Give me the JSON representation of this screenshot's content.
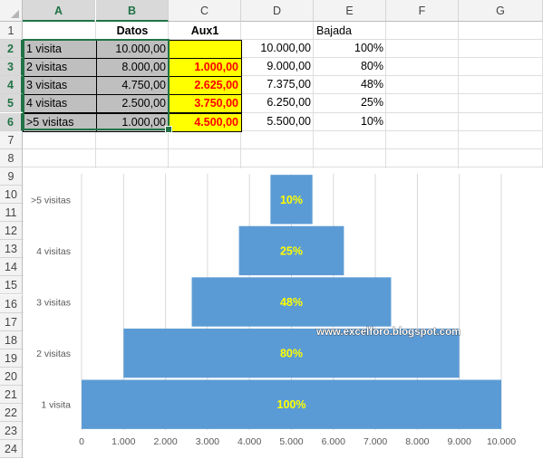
{
  "columns": [
    "A",
    "B",
    "C",
    "D",
    "E",
    "F",
    "G"
  ],
  "selected_columns": [
    "A",
    "B"
  ],
  "rows": [
    "1",
    "2",
    "3",
    "4",
    "5",
    "6",
    "7",
    "8",
    "9",
    "10",
    "11",
    "12",
    "13",
    "14",
    "15",
    "16",
    "17",
    "18",
    "19",
    "20",
    "21",
    "22",
    "23",
    "24"
  ],
  "selected_rows": [
    "2",
    "3",
    "4",
    "5",
    "6"
  ],
  "header_row": {
    "B": "Datos",
    "C": "Aux1",
    "E": "Bajada"
  },
  "table": [
    {
      "label": "1 visita",
      "datos": "10.000,00",
      "aux1": "",
      "d": "10.000,00",
      "bajada": "100%"
    },
    {
      "label": "2 visitas",
      "datos": "8.000,00",
      "aux1": "1.000,00",
      "d": "9.000,00",
      "bajada": "80%"
    },
    {
      "label": "3 visitas",
      "datos": "4.750,00",
      "aux1": "2.625,00",
      "d": "7.375,00",
      "bajada": "48%"
    },
    {
      "label": "4 visitas",
      "datos": "2.500,00",
      "aux1": "3.750,00",
      "d": "6.250,00",
      "bajada": "25%"
    },
    {
      "label": ">5 visitas",
      "datos": "1.000,00",
      "aux1": "4.500,00",
      "d": "5.500,00",
      "bajada": "10%"
    }
  ],
  "chart_data": {
    "type": "bar",
    "orientation": "horizontal-stacked",
    "categories": [
      "1 visita",
      "2 visitas",
      "3 visitas",
      "4 visitas",
      ">5 visitas"
    ],
    "series": [
      {
        "name": "Aux1",
        "values": [
          0,
          1000,
          2625,
          3750,
          4500
        ]
      },
      {
        "name": "Datos",
        "values": [
          10000,
          8000,
          4750,
          2500,
          1000
        ]
      }
    ],
    "data_labels": [
      "100%",
      "80%",
      "48%",
      "25%",
      "10%"
    ],
    "x_ticks": [
      "0",
      "1.000",
      "2.000",
      "3.000",
      "4.000",
      "5.000",
      "6.000",
      "7.000",
      "8.000",
      "9.000",
      "10.000"
    ],
    "xlim": [
      0,
      10000
    ],
    "grid": true,
    "bar_color": "#5b9bd5",
    "label_color": "#ffff00",
    "gridline_color": "#d9d9d9",
    "watermark": "www.excelforo.blogspot.com"
  },
  "colors": {
    "selection": "#217346",
    "grey_fill": "#bfbfbf",
    "yellow_fill": "#ffff00",
    "red_text": "#ff0000"
  }
}
